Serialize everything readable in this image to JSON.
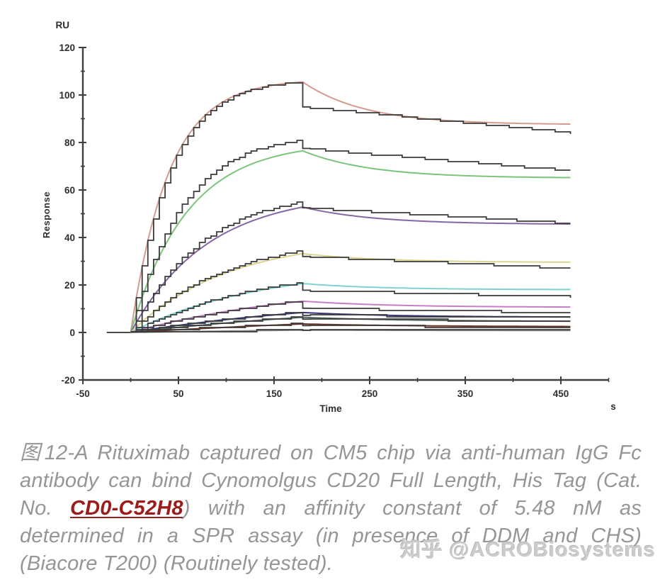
{
  "chart_data": {
    "type": "line",
    "kind": "SPR sensorgram (Biacore), concentration series with 1:1 kinetic fit overlays",
    "ylabel": "Response",
    "y_unit_label": "RU",
    "xlabel": "Time",
    "x_unit_label": "s",
    "xlim": [
      -50,
      500
    ],
    "ylim": [
      -20,
      120
    ],
    "x_major_ticks": [
      -50,
      50,
      150,
      250,
      350,
      450
    ],
    "x_minor_ticks": [
      0,
      100,
      200,
      300,
      400,
      500
    ],
    "y_major_ticks": [
      -20,
      0,
      20,
      40,
      60,
      80,
      100,
      120
    ],
    "y_minor_ticks": [
      -10,
      10,
      30,
      50,
      70,
      90,
      110
    ],
    "grid": false,
    "legend": false,
    "baseline_start_s": -25,
    "association_start_s": 0,
    "dissociation_start_s": 180,
    "run_end_s": 460,
    "axis_color": "#3f3f3f",
    "tick_label_color": "#2e2e2e",
    "fit_color": "#3b3b3b",
    "baseline_color": "#4a4a4a",
    "series": [
      {
        "name": "curve-1-salmon",
        "color": "#d49b8e",
        "peak_ru": 105.5,
        "end_ru": 87.5,
        "assoc_rate": 0.025,
        "decay_tau": 65,
        "fit": {
          "peak_ru": 105.5,
          "assoc_rate": 0.025,
          "post_drop_ru": 95,
          "end_ru": 84
        }
      },
      {
        "name": "curve-2-green",
        "color": "#7cc47c",
        "peak_ru": 76.5,
        "end_ru": 65,
        "assoc_rate": 0.017,
        "decay_tau": 70,
        "fit": {
          "peak_ru": 81,
          "assoc_rate": 0.019,
          "post_drop_ru": 77.5,
          "end_ru": 68
        }
      },
      {
        "name": "curve-3-purple",
        "color": "#8766a6",
        "peak_ru": 52.8,
        "end_ru": 45.5,
        "assoc_rate": 0.0125,
        "decay_tau": 75,
        "fit": {
          "peak_ru": 55,
          "assoc_rate": 0.0135,
          "post_drop_ru": 52.5,
          "end_ru": 46
        }
      },
      {
        "name": "curve-4-khaki",
        "color": "#dcd48f",
        "peak_ru": 33.2,
        "end_ru": 29.5,
        "assoc_rate": 0.01,
        "decay_tau": 80,
        "fit": {
          "peak_ru": 34.3,
          "assoc_rate": 0.0105,
          "post_drop_ru": 32,
          "end_ru": 27
        }
      },
      {
        "name": "curve-5-cyan",
        "color": "#7fd1d1",
        "peak_ru": 20.6,
        "end_ru": 18,
        "assoc_rate": 0.0075,
        "decay_tau": 80,
        "fit": {
          "peak_ru": 21,
          "assoc_rate": 0.008,
          "post_drop_ru": 17.8,
          "end_ru": 15
        }
      },
      {
        "name": "curve-6-orchid",
        "color": "#c67fc6",
        "peak_ru": 13.2,
        "end_ru": 10.6,
        "assoc_rate": 0.0055,
        "decay_tau": 90,
        "fit": {
          "peak_ru": 13.2,
          "assoc_rate": 0.0057,
          "post_drop_ru": 10.2,
          "end_ru": 8.3
        }
      },
      {
        "name": "curve-7-navy",
        "color": "#31347f",
        "peak_ru": 8.4,
        "end_ru": 6.4,
        "assoc_rate": 0.0042,
        "decay_tau": 100,
        "fit": {
          "peak_ru": 8.5,
          "assoc_rate": 0.0043,
          "post_drop_ru": 7.2,
          "end_ru": 6.6
        }
      },
      {
        "name": "curve-8-slate",
        "color": "#54695d",
        "peak_ru": 6.4,
        "end_ru": 4.6,
        "assoc_rate": 0.0032,
        "decay_tau": 110,
        "fit": {
          "peak_ru": 6.5,
          "assoc_rate": 0.0033,
          "post_drop_ru": 5.6,
          "end_ru": 4.9
        }
      },
      {
        "name": "curve-9-maroon",
        "color": "#6d3126",
        "peak_ru": 3.6,
        "end_ru": 2.4,
        "assoc_rate": 0.0022,
        "decay_tau": 120,
        "fit": {
          "peak_ru": 3.7,
          "assoc_rate": 0.0023,
          "post_drop_ru": 2.9,
          "end_ru": 2.1
        }
      },
      {
        "name": "curve-10-control",
        "color": "#8a8a8a",
        "peak_ru": 1.0,
        "end_ru": 0.8,
        "assoc_rate": 0.002,
        "decay_tau": 150,
        "fit": {
          "peak_ru": 1.0,
          "assoc_rate": 0.002,
          "post_drop_ru": 0.9,
          "end_ru": 0.8
        }
      }
    ]
  },
  "caption": {
    "lines": [
      {
        "justify": true,
        "segments": [
          {
            "text": "图12-A Rituximab captured on CM5 chip via anti-human IgG Fc"
          }
        ]
      },
      {
        "justify": true,
        "segments": [
          {
            "text": "antibody  can bind Cynomolgus CD20 Full Length, His Tag (Cat."
          }
        ]
      },
      {
        "justify": true,
        "segments": [
          {
            "text": "No. "
          },
          {
            "text": "CD0-C52H8",
            "style": "link"
          },
          {
            "text": ") with an  affinity constant of 5.48 nM as"
          }
        ]
      },
      {
        "justify": true,
        "segments": [
          {
            "text": "determined in a SPR assay (in presence of DDM  and CHS)"
          }
        ]
      },
      {
        "justify": false,
        "segments": [
          {
            "text": "(Biacore T200) (Routinely tested)."
          }
        ]
      }
    ]
  },
  "watermark": {
    "text": "知乎 @ACROBiosystems"
  }
}
